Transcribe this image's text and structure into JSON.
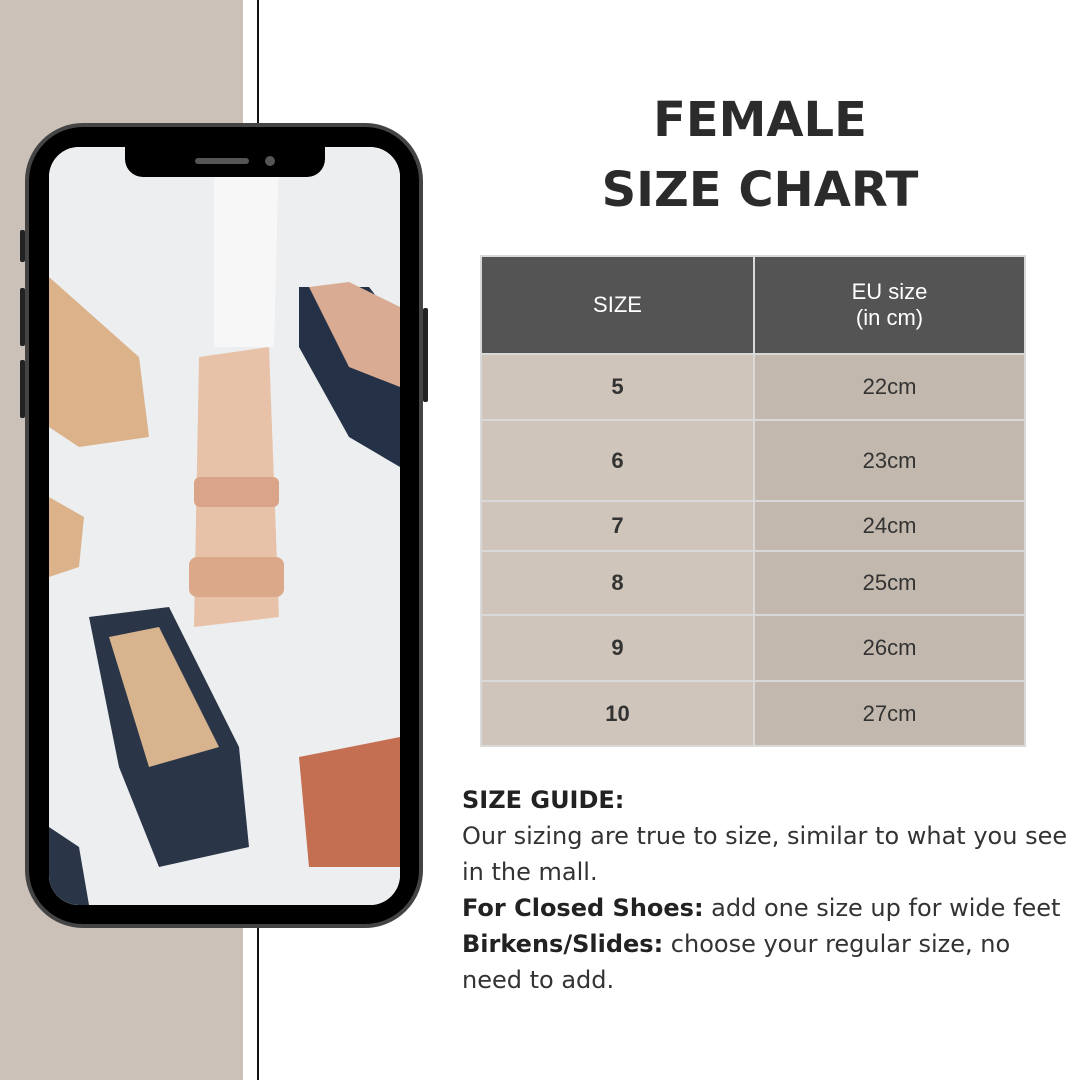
{
  "title": {
    "line1": "FEMALE",
    "line2": "SIZE CHART"
  },
  "table": {
    "headers": [
      "SIZE",
      "EU size\n(in cm)"
    ],
    "rows": [
      [
        "5",
        "22cm"
      ],
      [
        "6",
        "23cm"
      ],
      [
        "7",
        "24cm"
      ],
      [
        "8",
        "25cm"
      ],
      [
        "9",
        "26cm"
      ],
      [
        "10",
        "27cm"
      ]
    ]
  },
  "guide": {
    "heading": "SIZE GUIDE:",
    "line1": "Our sizing are true to size, similar to what you see in the mall.",
    "closed_label": "For Closed Shoes:",
    "closed_text": " add one size up for wide feet",
    "birkens_label": "Birkens/Slides:",
    "birkens_text": " choose your regular size, no need to add."
  },
  "colors": {
    "beige": "#cbc1b8",
    "header": "#545454",
    "cell_light": "#d0c5bb",
    "cell_dark": "#c3b8ae"
  }
}
